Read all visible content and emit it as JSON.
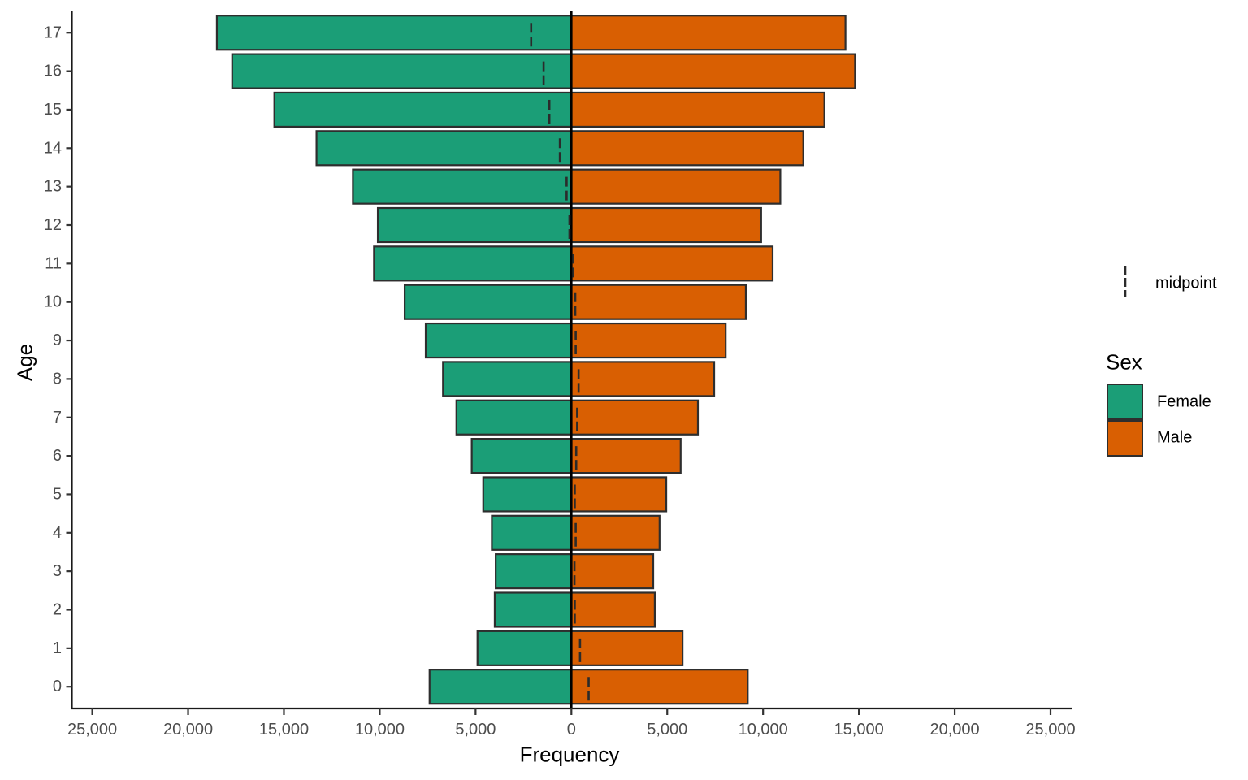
{
  "chart_data": {
    "type": "bar",
    "variant": "population-pyramid",
    "title": "",
    "xlabel": "Frequency",
    "ylabel": "Age",
    "grid": "off",
    "legend_position": "right",
    "x_axis": {
      "tick_values": [
        -25000,
        -20000,
        -15000,
        -10000,
        -5000,
        0,
        5000,
        10000,
        15000,
        20000,
        25000
      ],
      "tick_labels": [
        "25,000",
        "20,000",
        "15,000",
        "10,000",
        "5,000",
        "0",
        "5,000",
        "10,000",
        "15,000",
        "20,000",
        "25,000"
      ],
      "range": [
        -26100,
        26100
      ]
    },
    "y_axis": {
      "categories": [
        "0",
        "1",
        "2",
        "3",
        "4",
        "5",
        "6",
        "7",
        "8",
        "9",
        "10",
        "11",
        "12",
        "13",
        "14",
        "15",
        "16",
        "17"
      ]
    },
    "series": [
      {
        "name": "Female",
        "side": "left",
        "color": "#1B9E77",
        "values": [
          7400,
          4900,
          4000,
          3950,
          4150,
          4600,
          5200,
          6000,
          6700,
          7600,
          8700,
          10300,
          10100,
          11400,
          13300,
          15500,
          17700,
          18500
        ]
      },
      {
        "name": "Male",
        "side": "right",
        "color": "#D95F02",
        "values": [
          9200,
          5800,
          4350,
          4270,
          4600,
          4950,
          5700,
          6600,
          7450,
          8050,
          9100,
          10500,
          9900,
          10900,
          12100,
          13200,
          14800,
          14300
        ]
      }
    ],
    "midpoints": [
      900,
      450,
      175,
      160,
      225,
      175,
      250,
      300,
      375,
      225,
      200,
      100,
      -100,
      -250,
      -600,
      -1150,
      -1450,
      -2100
    ],
    "legend": {
      "midpoint_label": "midpoint",
      "sex_title": "Sex",
      "entries": [
        "Female",
        "Male"
      ]
    },
    "styles": {
      "bar_border_color": "#2E2E2E",
      "axis_color": "#1A1A1A",
      "tick_color": "#333333",
      "tick_label_color": "#4D4D4D",
      "zero_line_color": "#000000",
      "midpoint_line_color": "#2B2B2B",
      "background": "#FFFFFF"
    }
  }
}
